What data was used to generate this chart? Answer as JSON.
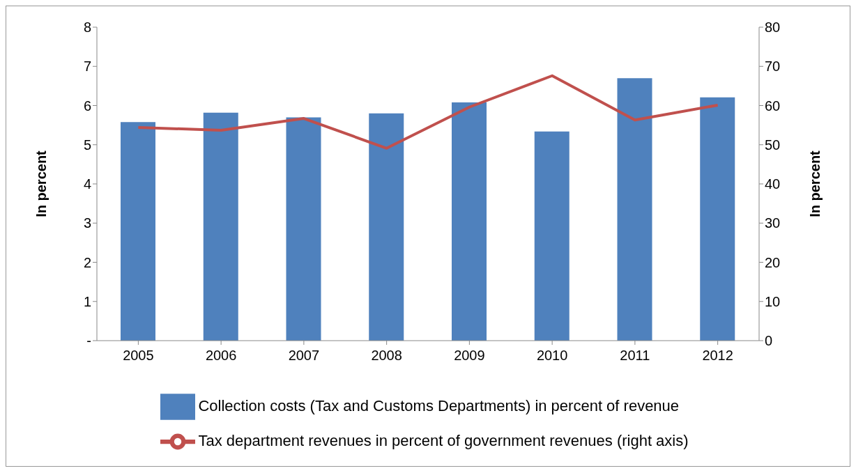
{
  "chart_data": {
    "type": "bar",
    "categories": [
      "2005",
      "2006",
      "2007",
      "2008",
      "2009",
      "2010",
      "2011",
      "2012"
    ],
    "series": [
      {
        "name": "Collection costs (Tax and Customs Departments) in percent of revenue",
        "color": "#4f81bd",
        "values": [
          5.58,
          5.82,
          5.7,
          5.8,
          6.08,
          5.34,
          6.7,
          6.21
        ]
      },
      {
        "name": "Tax department revenues in percent of government revenues (right axis)",
        "type": "line",
        "axis": "y2",
        "color": "#c0504d",
        "values": [
          54.4,
          53.7,
          56.7,
          49.1,
          59.6,
          67.6,
          56.3,
          60.1
        ]
      }
    ],
    "ylabel": "In percent",
    "y2label": "In percent",
    "ylim": [
      0,
      8
    ],
    "yticks": [
      {
        "value": 0,
        "label": "-"
      },
      1,
      2,
      3,
      4,
      5,
      6,
      7,
      8
    ],
    "y2lim": [
      0,
      80
    ],
    "y2ticks": [
      0,
      10,
      20,
      30,
      40,
      50,
      60,
      70,
      80
    ],
    "grid": false,
    "legend": "bottom",
    "marker": "none",
    "line_style": "solid"
  }
}
